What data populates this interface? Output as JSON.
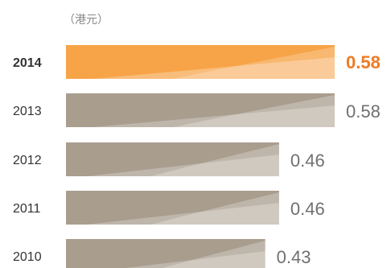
{
  "unit_label": "（港元）",
  "colors": {
    "highlight": "#f7a448",
    "highlight_value": "#ee7a22",
    "bar": "#a99d8e",
    "year_text": "#333333",
    "value_text": "#707070"
  },
  "chart_data": {
    "type": "bar",
    "orientation": "horizontal",
    "categories": [
      "2014",
      "2013",
      "2012",
      "2011",
      "2010"
    ],
    "values": [
      0.58,
      0.58,
      0.46,
      0.46,
      0.43
    ],
    "value_labels": [
      "0.58",
      "0.58",
      "0.46",
      "0.46",
      "0.43"
    ],
    "highlight_category": "2014",
    "xlim": [
      0,
      0.58
    ]
  }
}
